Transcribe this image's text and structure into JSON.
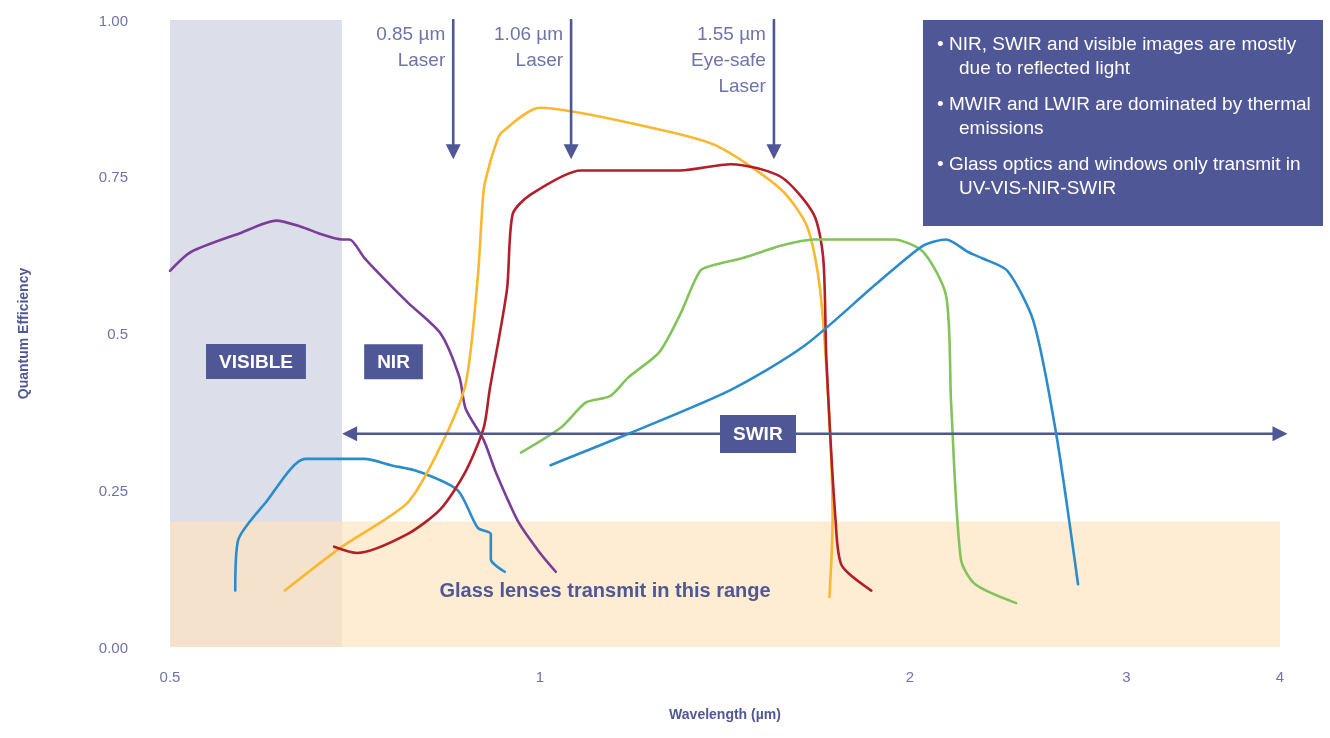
{
  "chart_data": {
    "type": "line",
    "xlabel": "Wavelength (µm)",
    "ylabel": "Quantum Efficiency",
    "log": "x",
    "xlim": [
      0.5,
      4
    ],
    "xticks": [
      0.5,
      1,
      2,
      3,
      4
    ],
    "ylim": [
      0,
      1
    ],
    "yticks": [
      {
        "value": 0,
        "label": "0.00"
      },
      0.25,
      0.5,
      0.75,
      {
        "value": 1,
        "label": "1.00"
      }
    ],
    "grid": false,
    "marker": "none",
    "line_style": "solid",
    "series": [
      {
        "color": "#7a3e98",
        "x": [
          0.5,
          0.52,
          0.57,
          0.61,
          0.64,
          0.66,
          0.69,
          0.7,
          0.72,
          0.78,
          0.83,
          0.86,
          0.87,
          0.9,
          0.92,
          0.96,
          1.0,
          1.03
        ],
        "values": [
          0.6,
          0.63,
          0.66,
          0.68,
          0.67,
          0.66,
          0.65,
          0.65,
          0.62,
          0.55,
          0.5,
          0.43,
          0.38,
          0.33,
          0.28,
          0.2,
          0.15,
          0.12
        ]
      },
      {
        "color": "#2b8ccc",
        "x": [
          0.565,
          0.568,
          0.598,
          0.644,
          0.685,
          0.72,
          0.756,
          0.796,
          0.857,
          0.89,
          0.912,
          0.912,
          0.936
        ],
        "values": [
          0.09,
          0.17,
          0.23,
          0.3,
          0.3,
          0.3,
          0.29,
          0.28,
          0.25,
          0.19,
          0.18,
          0.14,
          0.12
        ]
      },
      {
        "color": "#fbb72f",
        "x": [
          0.62,
          0.69,
          0.78,
          0.83,
          0.87,
          0.89,
          0.9,
          0.91,
          0.92,
          0.93,
          1.0,
          1.22,
          1.39,
          1.57,
          1.65,
          1.69,
          1.72,
          1.73,
          1.72
        ],
        "values": [
          0.09,
          0.16,
          0.23,
          0.32,
          0.42,
          0.59,
          0.73,
          0.77,
          0.8,
          0.82,
          0.86,
          0.83,
          0.8,
          0.73,
          0.67,
          0.57,
          0.36,
          0.2,
          0.08
        ]
      },
      {
        "color": "#b21f2b",
        "x": [
          0.68,
          0.71,
          0.78,
          0.83,
          0.87,
          0.9,
          0.91,
          0.94,
          0.95,
          0.98,
          1.08,
          1.3,
          1.43,
          1.57,
          1.67,
          1.7,
          1.71,
          1.74,
          1.76,
          1.86
        ],
        "values": [
          0.16,
          0.15,
          0.18,
          0.22,
          0.28,
          0.35,
          0.41,
          0.57,
          0.69,
          0.72,
          0.76,
          0.76,
          0.77,
          0.75,
          0.69,
          0.62,
          0.46,
          0.2,
          0.13,
          0.09
        ]
      },
      {
        "color": "#82c45b",
        "x": [
          0.965,
          1.04,
          1.09,
          1.14,
          1.18,
          1.25,
          1.3,
          1.35,
          1.39,
          1.46,
          1.57,
          1.67,
          1.84,
          1.94,
          2.05,
          2.14,
          2.16,
          2.2,
          2.26,
          2.44
        ],
        "values": [
          0.31,
          0.35,
          0.39,
          0.4,
          0.43,
          0.47,
          0.53,
          0.6,
          0.61,
          0.62,
          0.64,
          0.65,
          0.65,
          0.65,
          0.63,
          0.56,
          0.39,
          0.14,
          0.1,
          0.07
        ]
      },
      {
        "name": "SWIR",
        "color": "#4f5796",
        "marker": "triangle",
        "x": [
          0.7,
          4
        ],
        "values": [
          0.34,
          0.34
        ]
      },
      {
        "name": "0.85 µm Laser",
        "color": "#4f5796",
        "marker": "triangle",
        "x": [
          0.85,
          0.85
        ],
        "values": [
          1,
          0.79
        ]
      },
      {
        "name": "1.06 µm Laser",
        "color": "#4f5796",
        "marker": "triangle",
        "x": [
          1.06,
          1.06
        ],
        "values": [
          1,
          0.79
        ]
      },
      {
        "name": "1.55 µm Eye-safe Laser",
        "color": "#4f5796",
        "marker": "triangle",
        "x": [
          1.55,
          1.55
        ],
        "values": [
          1,
          0.79
        ]
      },
      {
        "color": "#2b8ccc",
        "x": [
          1.02,
          1.18,
          1.43,
          1.64,
          1.88,
          2.05,
          2.14,
          2.23,
          2.29,
          2.4,
          2.52,
          2.63,
          2.74
        ],
        "values": [
          0.29,
          0.34,
          0.41,
          0.48,
          0.58,
          0.64,
          0.65,
          0.63,
          0.62,
          0.6,
          0.52,
          0.34,
          0.1
        ]
      }
    ],
    "bands": [
      {
        "axis": "x",
        "from": 0.5,
        "to": 0.69,
        "label": "VISIBLE",
        "color": "#dcdeea"
      },
      {
        "axis": "y",
        "from": 0,
        "to": 0.2,
        "label": "Glass lenses transmit in this range",
        "color": "#fde4c0"
      }
    ],
    "annotations": [
      "NIR",
      "• NIR, SWIR and visible images are mostly due to reflected light",
      "• MWIR and LWIR are dominated by thermal emissions",
      "• Glass optics and windows only transmit in UV-VIS-NIR-SWIR"
    ]
  }
}
